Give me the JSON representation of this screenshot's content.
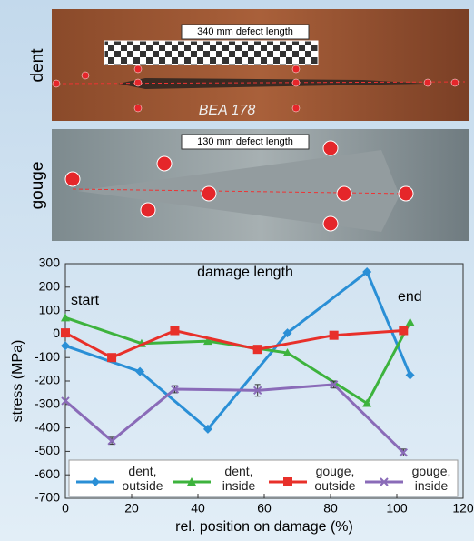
{
  "photos": {
    "top_label": "dent",
    "top_caption": "340 mm defect length",
    "top_marking": "BEA 178",
    "bottom_label": "gouge",
    "bottom_caption": "130 mm defect length"
  },
  "chart_data": {
    "type": "line",
    "y_label": "stress (MPa)",
    "x_label": "rel. position on damage (%)",
    "annotations": [
      "start",
      "damage length",
      "end"
    ],
    "xlim": [
      0,
      120
    ],
    "xticks": [
      0,
      20,
      40,
      60,
      80,
      100,
      120
    ],
    "ylim": [
      -700,
      300
    ],
    "yticks": [
      -700,
      -600,
      -500,
      -400,
      -300,
      -200,
      -100,
      0,
      100,
      200,
      300
    ],
    "series": [
      {
        "name": "dent, outside",
        "color": "#2a8fd6",
        "marker": "diamond",
        "x": [
          0,
          22.5,
          43,
          67,
          91,
          104
        ],
        "values": [
          -50,
          -160,
          -405,
          5,
          265,
          -175
        ]
      },
      {
        "name": "dent, inside",
        "color": "#3db33d",
        "marker": "triangle",
        "x": [
          0,
          23,
          43,
          67,
          91,
          104
        ],
        "values": [
          70,
          -40,
          -30,
          -80,
          -295,
          50
        ]
      },
      {
        "name": "gouge, outside",
        "color": "#e8302a",
        "marker": "square",
        "x": [
          0,
          14,
          33,
          58,
          81,
          102
        ],
        "values": [
          5,
          -100,
          15,
          -65,
          -5,
          15
        ]
      },
      {
        "name": "gouge, inside",
        "color": "#8a6bb8",
        "marker": "cross",
        "x": [
          0,
          14,
          33,
          58,
          81,
          102
        ],
        "values": [
          -285,
          -455,
          -235,
          -240,
          -215,
          -505
        ],
        "errors": [
          null,
          15,
          15,
          25,
          15,
          15
        ]
      }
    ]
  }
}
